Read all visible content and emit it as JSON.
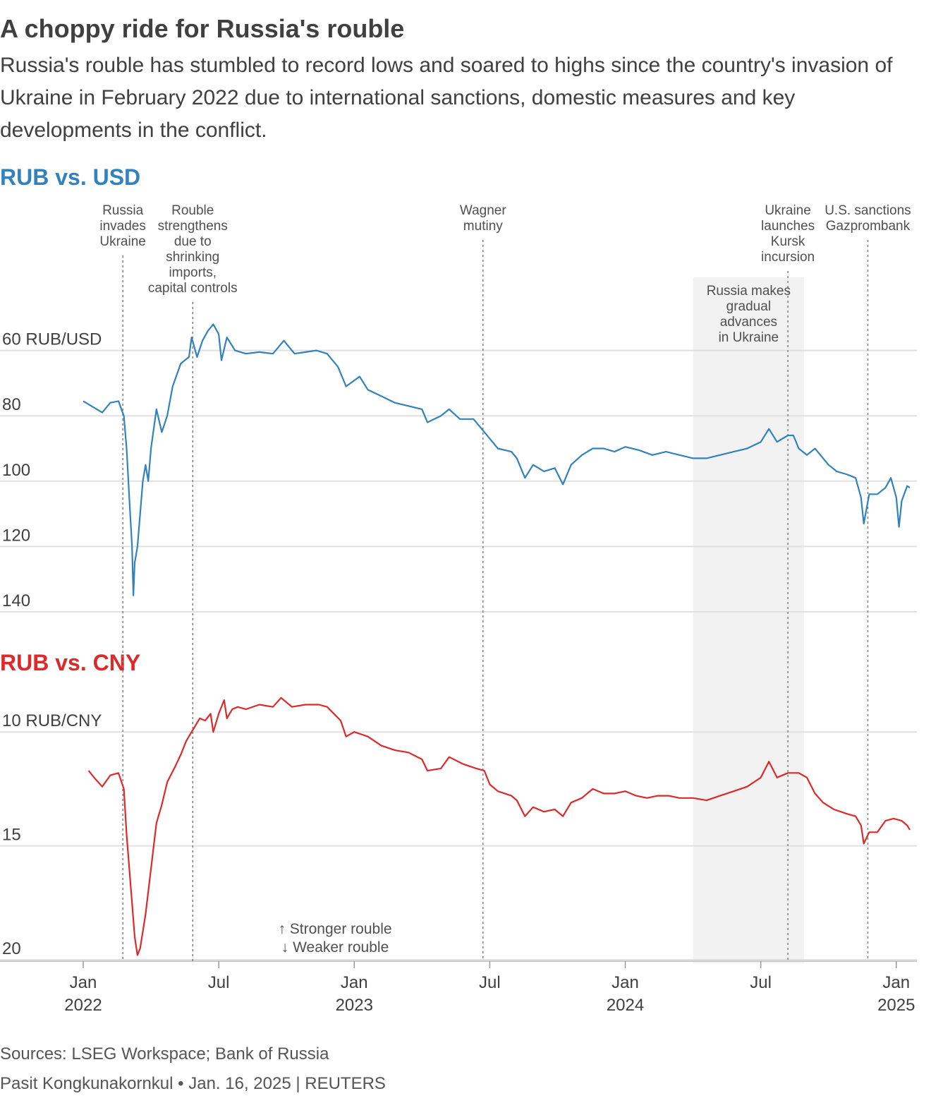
{
  "header": {
    "title": "A choppy ride for Russia's rouble",
    "subtitle": "Russia's rouble has stumbled to record lows and soared to highs since the country's invasion of Ukraine in February 2022 due to international sanctions, domestic measures and key developments in the conflict."
  },
  "colors": {
    "usd": "#3282be",
    "cny": "#dc2a2a",
    "grid": "#e0e0e0",
    "band": "#f2f2f2",
    "text": "#404040"
  },
  "chart_data": [
    {
      "type": "line",
      "title": "RUB vs. USD",
      "unit_label": "60 RUB/USD",
      "y_ticks": [
        {
          "value": 60,
          "label": "60 RUB/USD"
        },
        {
          "value": 80,
          "label": "80"
        },
        {
          "value": 100,
          "label": "100"
        },
        {
          "value": 120,
          "label": "120"
        },
        {
          "value": 140,
          "label": "140"
        }
      ],
      "ylim": [
        40,
        140
      ],
      "y_inverted": true,
      "series": [
        {
          "name": "RUB/USD",
          "points": [
            [
              2022.0,
              75.5
            ],
            [
              2022.03,
              77
            ],
            [
              2022.07,
              79
            ],
            [
              2022.1,
              76
            ],
            [
              2022.13,
              75.5
            ],
            [
              2022.15,
              80
            ],
            [
              2022.16,
              90
            ],
            [
              2022.17,
              105
            ],
            [
              2022.18,
              120
            ],
            [
              2022.185,
              135
            ],
            [
              2022.19,
              125
            ],
            [
              2022.2,
              120
            ],
            [
              2022.21,
              110
            ],
            [
              2022.22,
              100
            ],
            [
              2022.23,
              95
            ],
            [
              2022.24,
              100
            ],
            [
              2022.25,
              90
            ],
            [
              2022.27,
              78
            ],
            [
              2022.29,
              85
            ],
            [
              2022.31,
              80
            ],
            [
              2022.33,
              71
            ],
            [
              2022.36,
              64
            ],
            [
              2022.39,
              62
            ],
            [
              2022.4,
              56
            ],
            [
              2022.42,
              62
            ],
            [
              2022.44,
              57
            ],
            [
              2022.46,
              54
            ],
            [
              2022.48,
              52
            ],
            [
              2022.5,
              55
            ],
            [
              2022.51,
              63
            ],
            [
              2022.53,
              56
            ],
            [
              2022.56,
              60
            ],
            [
              2022.6,
              61
            ],
            [
              2022.65,
              60.5
            ],
            [
              2022.7,
              61
            ],
            [
              2022.74,
              57
            ],
            [
              2022.78,
              61
            ],
            [
              2022.82,
              60.5
            ],
            [
              2022.86,
              60
            ],
            [
              2022.9,
              61
            ],
            [
              2022.94,
              65
            ],
            [
              2022.97,
              71
            ],
            [
              2023.02,
              68
            ],
            [
              2023.05,
              72
            ],
            [
              2023.1,
              74
            ],
            [
              2023.15,
              76
            ],
            [
              2023.2,
              77
            ],
            [
              2023.25,
              78
            ],
            [
              2023.27,
              82
            ],
            [
              2023.32,
              80
            ],
            [
              2023.35,
              78
            ],
            [
              2023.39,
              81
            ],
            [
              2023.44,
              81
            ],
            [
              2023.47,
              84
            ],
            [
              2023.5,
              87
            ],
            [
              2023.53,
              90
            ],
            [
              2023.58,
              91
            ],
            [
              2023.6,
              93
            ],
            [
              2023.63,
              99
            ],
            [
              2023.66,
              95
            ],
            [
              2023.7,
              97
            ],
            [
              2023.74,
              96
            ],
            [
              2023.77,
              101
            ],
            [
              2023.8,
              95
            ],
            [
              2023.84,
              92
            ],
            [
              2023.88,
              90
            ],
            [
              2023.92,
              90
            ],
            [
              2023.96,
              91
            ],
            [
              2024.0,
              89.5
            ],
            [
              2024.05,
              90.5
            ],
            [
              2024.1,
              92
            ],
            [
              2024.15,
              91
            ],
            [
              2024.2,
              92
            ],
            [
              2024.25,
              93
            ],
            [
              2024.3,
              93
            ],
            [
              2024.35,
              92
            ],
            [
              2024.4,
              91
            ],
            [
              2024.45,
              90
            ],
            [
              2024.5,
              88
            ],
            [
              2024.53,
              84
            ],
            [
              2024.56,
              88
            ],
            [
              2024.6,
              86
            ],
            [
              2024.62,
              86
            ],
            [
              2024.64,
              90
            ],
            [
              2024.67,
              92
            ],
            [
              2024.7,
              90
            ],
            [
              2024.72,
              92
            ],
            [
              2024.75,
              95
            ],
            [
              2024.78,
              97
            ],
            [
              2024.82,
              98
            ],
            [
              2024.85,
              99
            ],
            [
              2024.87,
              105
            ],
            [
              2024.88,
              113
            ],
            [
              2024.9,
              104
            ],
            [
              2024.93,
              104
            ],
            [
              2024.96,
              102
            ],
            [
              2024.98,
              99
            ],
            [
              2025.0,
              105
            ],
            [
              2025.01,
              114
            ],
            [
              2025.02,
              106
            ],
            [
              2025.04,
              101.5
            ],
            [
              2025.05,
              102
            ]
          ]
        }
      ]
    },
    {
      "type": "line",
      "title": "RUB vs. CNY",
      "unit_label": "10 RUB/CNY",
      "y_ticks": [
        {
          "value": 10,
          "label": "10 RUB/CNY"
        },
        {
          "value": 15,
          "label": "15"
        },
        {
          "value": 20,
          "label": "20"
        }
      ],
      "ylim": [
        7.7,
        20
      ],
      "y_inverted": true,
      "series": [
        {
          "name": "RUB/CNY",
          "points": [
            [
              2022.02,
              11.7
            ],
            [
              2022.04,
              12
            ],
            [
              2022.07,
              12.4
            ],
            [
              2022.1,
              11.9
            ],
            [
              2022.13,
              11.8
            ],
            [
              2022.15,
              12.5
            ],
            [
              2022.16,
              14.5
            ],
            [
              2022.18,
              17.5
            ],
            [
              2022.19,
              19
            ],
            [
              2022.2,
              19.8
            ],
            [
              2022.21,
              19.5
            ],
            [
              2022.23,
              18
            ],
            [
              2022.25,
              16
            ],
            [
              2022.27,
              14
            ],
            [
              2022.29,
              13.2
            ],
            [
              2022.31,
              12.2
            ],
            [
              2022.34,
              11.5
            ],
            [
              2022.36,
              11
            ],
            [
              2022.38,
              10.4
            ],
            [
              2022.4,
              10
            ],
            [
              2022.43,
              9.4
            ],
            [
              2022.45,
              9.5
            ],
            [
              2022.47,
              9.2
            ],
            [
              2022.48,
              10
            ],
            [
              2022.5,
              9.2
            ],
            [
              2022.52,
              8.6
            ],
            [
              2022.53,
              9.4
            ],
            [
              2022.55,
              9
            ],
            [
              2022.57,
              8.9
            ],
            [
              2022.6,
              9
            ],
            [
              2022.65,
              8.8
            ],
            [
              2022.7,
              8.9
            ],
            [
              2022.73,
              8.5
            ],
            [
              2022.77,
              8.9
            ],
            [
              2022.82,
              8.8
            ],
            [
              2022.87,
              8.8
            ],
            [
              2022.9,
              8.9
            ],
            [
              2022.95,
              9.5
            ],
            [
              2022.97,
              10.2
            ],
            [
              2023.0,
              10
            ],
            [
              2023.05,
              10.2
            ],
            [
              2023.1,
              10.6
            ],
            [
              2023.15,
              10.8
            ],
            [
              2023.2,
              10.9
            ],
            [
              2023.25,
              11.2
            ],
            [
              2023.27,
              11.7
            ],
            [
              2023.32,
              11.6
            ],
            [
              2023.35,
              11.1
            ],
            [
              2023.4,
              11.4
            ],
            [
              2023.45,
              11.6
            ],
            [
              2023.48,
              11.7
            ],
            [
              2023.5,
              12.3
            ],
            [
              2023.53,
              12.6
            ],
            [
              2023.58,
              12.8
            ],
            [
              2023.6,
              13
            ],
            [
              2023.63,
              13.7
            ],
            [
              2023.66,
              13.3
            ],
            [
              2023.7,
              13.5
            ],
            [
              2023.74,
              13.4
            ],
            [
              2023.77,
              13.7
            ],
            [
              2023.8,
              13.1
            ],
            [
              2023.84,
              12.9
            ],
            [
              2023.88,
              12.5
            ],
            [
              2023.92,
              12.7
            ],
            [
              2023.96,
              12.7
            ],
            [
              2024.0,
              12.6
            ],
            [
              2024.04,
              12.8
            ],
            [
              2024.08,
              12.9
            ],
            [
              2024.12,
              12.8
            ],
            [
              2024.16,
              12.8
            ],
            [
              2024.2,
              12.9
            ],
            [
              2024.25,
              12.9
            ],
            [
              2024.3,
              13
            ],
            [
              2024.35,
              12.8
            ],
            [
              2024.4,
              12.6
            ],
            [
              2024.45,
              12.4
            ],
            [
              2024.5,
              12
            ],
            [
              2024.53,
              11.3
            ],
            [
              2024.56,
              12
            ],
            [
              2024.6,
              11.8
            ],
            [
              2024.64,
              11.8
            ],
            [
              2024.67,
              12
            ],
            [
              2024.7,
              12.7
            ],
            [
              2024.73,
              13.1
            ],
            [
              2024.77,
              13.4
            ],
            [
              2024.82,
              13.6
            ],
            [
              2024.85,
              13.7
            ],
            [
              2024.87,
              14.1
            ],
            [
              2024.88,
              14.9
            ],
            [
              2024.9,
              14.4
            ],
            [
              2024.93,
              14.4
            ],
            [
              2024.96,
              13.9
            ],
            [
              2024.99,
              13.8
            ],
            [
              2025.02,
              13.9
            ],
            [
              2025.04,
              14.1
            ],
            [
              2025.05,
              14.3
            ]
          ]
        }
      ]
    }
  ],
  "x_axis": {
    "range": [
      2022.0,
      2025.05
    ],
    "ticks": [
      {
        "value": 2022.0,
        "label": "Jan",
        "year": "2022"
      },
      {
        "value": 2022.5,
        "label": "Jul",
        "year": ""
      },
      {
        "value": 2023.0,
        "label": "Jan",
        "year": "2023"
      },
      {
        "value": 2023.5,
        "label": "Jul",
        "year": ""
      },
      {
        "value": 2024.0,
        "label": "Jan",
        "year": "2024"
      },
      {
        "value": 2024.5,
        "label": "Jul",
        "year": ""
      },
      {
        "value": 2025.0,
        "label": "Jan",
        "year": "2025"
      }
    ]
  },
  "annotations": [
    {
      "x": 2022.146,
      "lines": [
        "Russia",
        "invades",
        "Ukraine"
      ]
    },
    {
      "x": 2022.404,
      "lines": [
        "Rouble",
        "strengthens",
        "due to",
        "shrinking",
        "imports,",
        "capital controls"
      ]
    },
    {
      "x": 2023.475,
      "lines": [
        "Wagner",
        "mutiny"
      ]
    },
    {
      "x": 2024.6,
      "lines": [
        "Ukraine",
        "launches",
        "Kursk",
        "incursion"
      ]
    },
    {
      "x": 2024.895,
      "lines": [
        "U.S. sanctions",
        "Gazprombank"
      ]
    }
  ],
  "band": {
    "from": 2024.25,
    "to": 2024.66,
    "lines": [
      "Russia makes",
      "gradual",
      "advances",
      "in Ukraine"
    ]
  },
  "direction_note": {
    "up": "↑ Stronger rouble",
    "down": "↓ Weaker rouble"
  },
  "footer": {
    "sources": "Sources: LSEG Workspace; Bank of Russia",
    "credit": "Pasit Kongkunakornkul • Jan. 16, 2025 | REUTERS"
  }
}
